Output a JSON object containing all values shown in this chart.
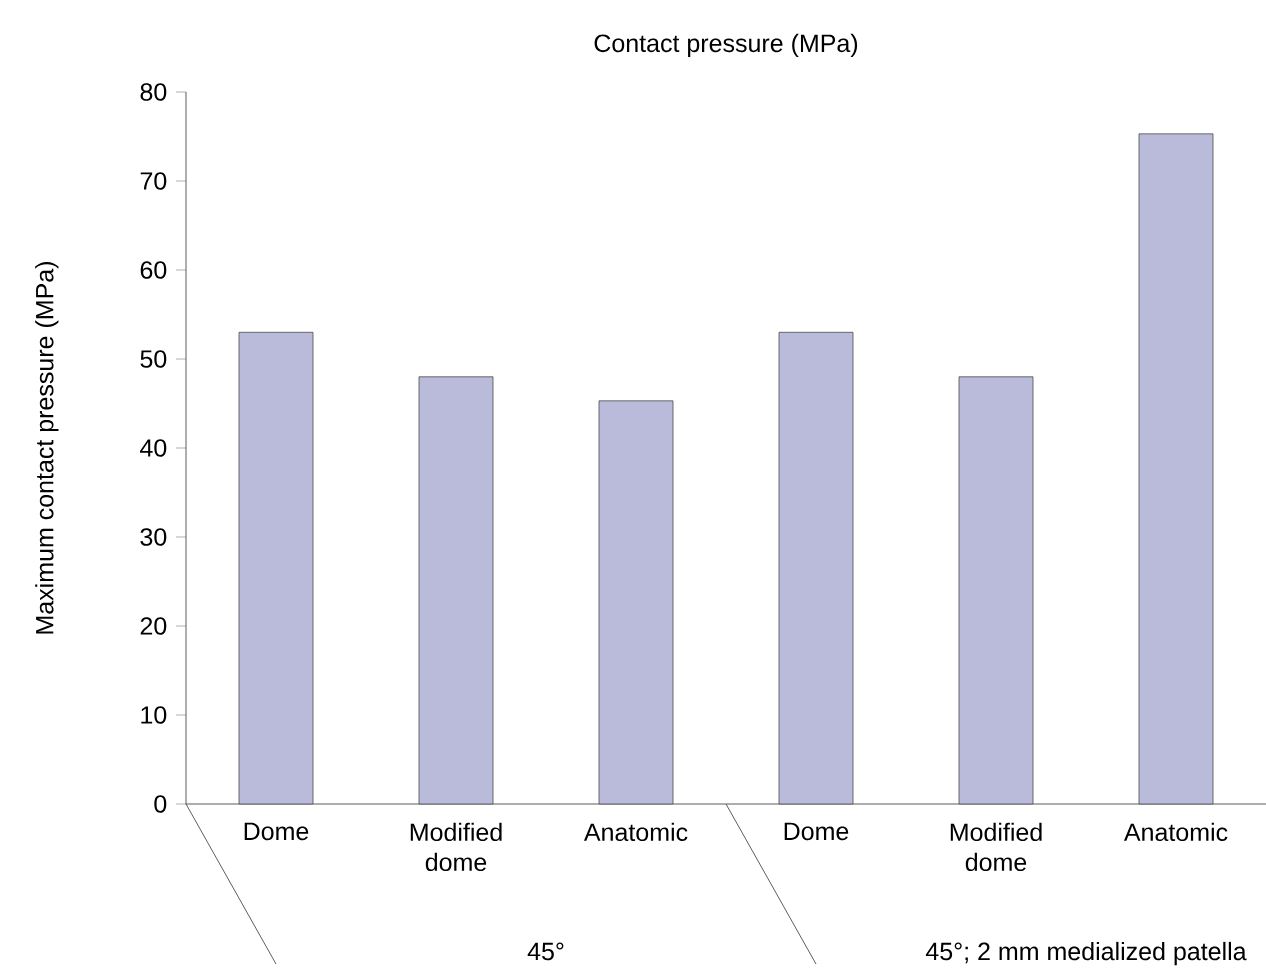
{
  "chart_data": {
    "type": "bar",
    "title": "Contact pressure (MPa)",
    "ylabel": "Maximum contact pressure (MPa)",
    "categories": [
      "Dome",
      "Modified dome",
      "Anatomic",
      "Dome",
      "Modified dome",
      "Anatomic"
    ],
    "values": [
      53,
      48,
      45.3,
      53,
      48,
      75.3
    ],
    "color": "#babadb",
    "ylim": [
      0,
      80
    ],
    "yticks": [
      0,
      10,
      20,
      30,
      40,
      50,
      60,
      70,
      80
    ],
    "annotations": [
      "45°",
      "45°; 2 mm medialized patella"
    ]
  }
}
